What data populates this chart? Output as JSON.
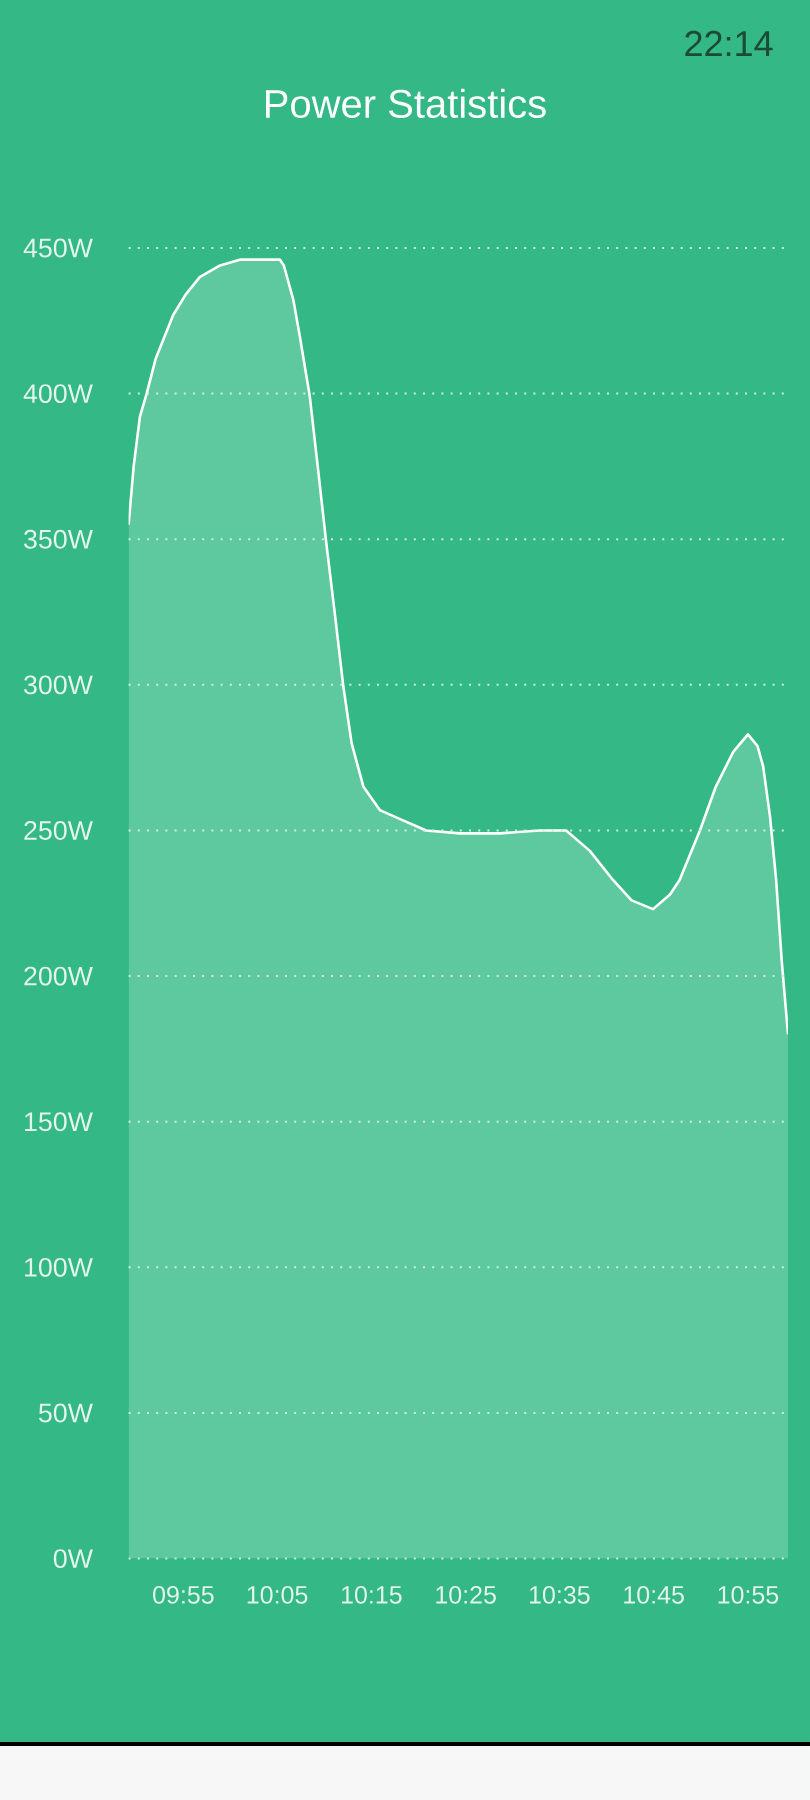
{
  "chart_data": {
    "type": "area",
    "title": "Power Statistics",
    "annotations": [
      "22:14"
    ],
    "x": [
      9.82,
      9.829,
      9.84,
      9.852,
      9.868,
      9.899,
      9.921,
      9.946,
      9.982,
      10.017,
      10.052,
      10.088,
      10.095,
      10.112,
      10.123,
      10.141,
      10.155,
      10.17,
      10.185,
      10.2,
      10.215,
      10.236,
      10.265,
      10.3,
      10.347,
      10.407,
      10.477,
      10.548,
      10.595,
      10.637,
      10.678,
      10.711,
      10.749,
      10.779,
      10.796,
      10.832,
      10.86,
      10.891,
      10.917,
      10.934,
      10.944,
      10.956,
      10.967,
      10.977,
      10.988
    ],
    "values": [
      355,
      375,
      392,
      400,
      412,
      427,
      434,
      440,
      444,
      446,
      446,
      446,
      444,
      432,
      420,
      399,
      375,
      349,
      325,
      300,
      280,
      265,
      257,
      254,
      250,
      249,
      249,
      250,
      250,
      243,
      233,
      226,
      223,
      228,
      233,
      250,
      265,
      277,
      283,
      279,
      272,
      255,
      233,
      205,
      180
    ],
    "color": "#5ec89f",
    "xlim": [
      9.82,
      10.988
    ],
    "xticks": [
      {
        "value": 9.917,
        "label": "09:55"
      },
      {
        "value": 10.083,
        "label": "10:05"
      },
      {
        "value": 10.25,
        "label": "10:15"
      },
      {
        "value": 10.417,
        "label": "10:25"
      },
      {
        "value": 10.583,
        "label": "10:35"
      },
      {
        "value": 10.75,
        "label": "10:45"
      },
      {
        "value": 10.917,
        "label": "10:55"
      }
    ],
    "ylim": [
      0,
      450
    ],
    "yticks": [
      {
        "value": 0,
        "label": "0W"
      },
      {
        "value": 50,
        "label": "50W"
      },
      {
        "value": 100,
        "label": "100W"
      },
      {
        "value": 150,
        "label": "150W"
      },
      {
        "value": 200,
        "label": "200W"
      },
      {
        "value": 250,
        "label": "250W"
      },
      {
        "value": 300,
        "label": "300W"
      },
      {
        "value": 350,
        "label": "350W"
      },
      {
        "value": 400,
        "label": "400W"
      },
      {
        "value": 450,
        "label": "450W"
      }
    ],
    "grid": "y"
  }
}
